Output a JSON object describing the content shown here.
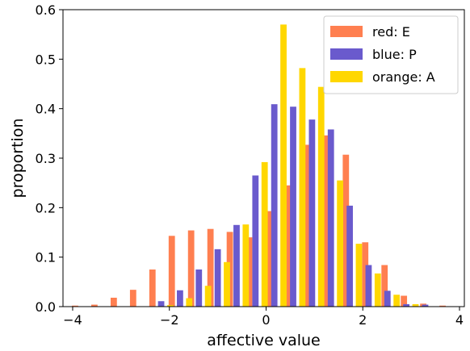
{
  "chart_data": {
    "type": "bar",
    "xlabel": "affective value",
    "ylabel": "proportion",
    "xlim": [
      -4.2,
      4.1
    ],
    "ylim": [
      0,
      0.6
    ],
    "xticks": [
      -4,
      -2,
      0,
      2,
      4
    ],
    "yticks": [
      0.0,
      0.1,
      0.2,
      0.3,
      0.4,
      0.5,
      0.6
    ],
    "legend_position": "top-right",
    "series": [
      {
        "name": "red: E",
        "color": "#ff7f50",
        "x": [
          -3.95,
          -3.55,
          -3.15,
          -2.75,
          -2.35,
          -1.95,
          -1.55,
          -1.15,
          -0.75,
          -0.35,
          0.05,
          0.45,
          0.85,
          1.25,
          1.65,
          2.05,
          2.45,
          2.85,
          3.25,
          3.65
        ],
        "values": [
          0.002,
          0.004,
          0.018,
          0.034,
          0.075,
          0.143,
          0.154,
          0.157,
          0.151,
          0.14,
          0.193,
          0.245,
          0.327,
          0.346,
          0.307,
          0.13,
          0.084,
          0.022,
          0.006,
          0.002
        ]
      },
      {
        "name": "blue: P",
        "color": "#6a5acd",
        "x": [
          -2.17,
          -1.78,
          -1.39,
          -1.0,
          -0.61,
          -0.22,
          0.17,
          0.56,
          0.95,
          1.34,
          1.73,
          2.12,
          2.51,
          2.9,
          3.29
        ],
        "values": [
          0.011,
          0.033,
          0.075,
          0.116,
          0.165,
          0.265,
          0.409,
          0.404,
          0.378,
          0.358,
          0.204,
          0.084,
          0.032,
          0.005,
          0.004
        ]
      },
      {
        "name": "orange: A",
        "color": "#ffd700",
        "x": [
          -1.98,
          -1.59,
          -1.2,
          -0.81,
          -0.42,
          -0.03,
          0.36,
          0.75,
          1.14,
          1.53,
          1.92,
          2.31,
          2.7,
          3.09
        ],
        "values": [
          0.003,
          0.017,
          0.042,
          0.09,
          0.166,
          0.292,
          0.57,
          0.482,
          0.444,
          0.255,
          0.127,
          0.067,
          0.024,
          0.005
        ]
      }
    ]
  }
}
